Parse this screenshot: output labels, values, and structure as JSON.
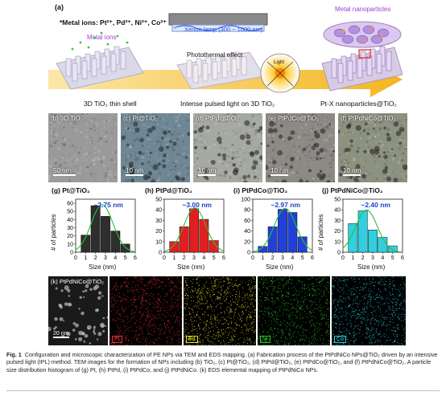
{
  "panel_a": {
    "label": "(a)",
    "metal_ions_caption": "*Metal ions: Pt²⁺, Pd²⁺, Ni²⁺, Co²⁺",
    "metal_ions_tag": "Metal ions",
    "lamp_label": "Xenon lamp (300 ~ 1000 nm)",
    "photothermal": "Photothermal effect",
    "light": "Light",
    "nanoparticles_tag": "Metal nanoparticles",
    "stage1": "3D TiO₂ thin shell",
    "stage2": "Intense pulsed light on 3D TiO₂",
    "stage3": "Pt-X nanoparticles@TiO₂"
  },
  "tem": [
    {
      "label": "(b) 3D TiO₂",
      "scale": "50 nm",
      "bg": "#9a9a9a"
    },
    {
      "label": "(c) Pt@TiO₂",
      "scale": "10 nm",
      "bg": "#6f8794"
    },
    {
      "label": "(d) PtPd@TiO₂",
      "scale": "10 nm",
      "bg": "#a6a9a2"
    },
    {
      "label": "(e) PtPdCo@TiO₂",
      "scale": "10 nm",
      "bg": "#8d8a85"
    },
    {
      "label": "(f) PtPdNiCo@TiO₂",
      "scale": "10 nm",
      "bg": "#8c9180"
    }
  ],
  "chart_data": [
    {
      "type": "bar",
      "title": "(g) Pt@TiO₂",
      "annotation": "~2.75 nm",
      "color": "#2e2e2e",
      "x": [
        1,
        2,
        3,
        4,
        5
      ],
      "values": [
        21,
        57,
        44,
        26,
        10
      ],
      "ylim": [
        0,
        65
      ],
      "yticks": [
        0,
        10,
        20,
        30,
        40,
        50,
        60
      ],
      "xticks": [
        0,
        1,
        2,
        3,
        4,
        5,
        6
      ],
      "xlabel": "Size (nm)",
      "ylabel": "# of particles"
    },
    {
      "type": "bar",
      "title": "(h) PtPd@TiO₂",
      "annotation": "~3.00 nm",
      "color": "#e02020",
      "x": [
        1,
        2,
        3,
        4,
        5
      ],
      "values": [
        10,
        24,
        41,
        31,
        11
      ],
      "ylim": [
        0,
        50
      ],
      "yticks": [
        0,
        10,
        20,
        30,
        40,
        50
      ],
      "xticks": [
        0,
        1,
        2,
        3,
        4,
        5,
        6
      ],
      "xlabel": "Size (nm)",
      "ylabel": ""
    },
    {
      "type": "bar",
      "title": "(i) PtPdCo@TiO₂",
      "annotation": "~2.97 nm",
      "color": "#2040d8",
      "x": [
        1,
        2,
        3,
        4,
        5
      ],
      "values": [
        11,
        48,
        81,
        75,
        29
      ],
      "ylim": [
        0,
        100
      ],
      "yticks": [
        0,
        20,
        40,
        60,
        80,
        100
      ],
      "xticks": [
        0,
        1,
        2,
        3,
        4,
        5,
        6
      ],
      "xlabel": "Size (nm)",
      "ylabel": ""
    },
    {
      "type": "bar",
      "title": "(j) PtPdNiCo@TiO₂",
      "annotation": "~2.40 nm",
      "color": "#30d0e0",
      "x": [
        1,
        2,
        3,
        4,
        5
      ],
      "values": [
        27,
        39,
        21,
        14,
        6
      ],
      "ylim": [
        0,
        50
      ],
      "yticks": [
        0,
        10,
        20,
        30,
        40,
        50
      ],
      "xticks": [
        0,
        1,
        2,
        3,
        4,
        5,
        6
      ],
      "xlabel": "Size (nm)",
      "ylabel": "# of particles"
    }
  ],
  "eds": {
    "title": "(k) PtPdNiCo@TiO₂",
    "scale": "20 nm",
    "maps": [
      {
        "element": "Pt",
        "color": "#e83030"
      },
      {
        "element": "Pd",
        "color": "#e6e030"
      },
      {
        "element": "Ni",
        "color": "#30c030"
      },
      {
        "element": "Co",
        "color": "#30c8d8"
      }
    ]
  },
  "caption": {
    "lead": "Fig. 1",
    "text": "Configuration and microscopic characterization of PE NPs via TEM and EDS mapping. (a) Fabrication process of the PtPdNiCo NPs@TiO₂ driven by an intensive pulsed light (IPL) method. TEM images for the formation of NPs including (b) TiO₂, (c) Pt@TiO₂, (d) PtPd@TiO₂, (e) PtPdCo@TiO₂, and (f) PtPdNiCo@TiO₂. A particle size distribution histogram of (g) Pt, (h) PtPd, (i) PtPdCo, and (j) PtPdNiCo. (k) EDS elemental mapping of PtPdNiCo NPs."
  }
}
